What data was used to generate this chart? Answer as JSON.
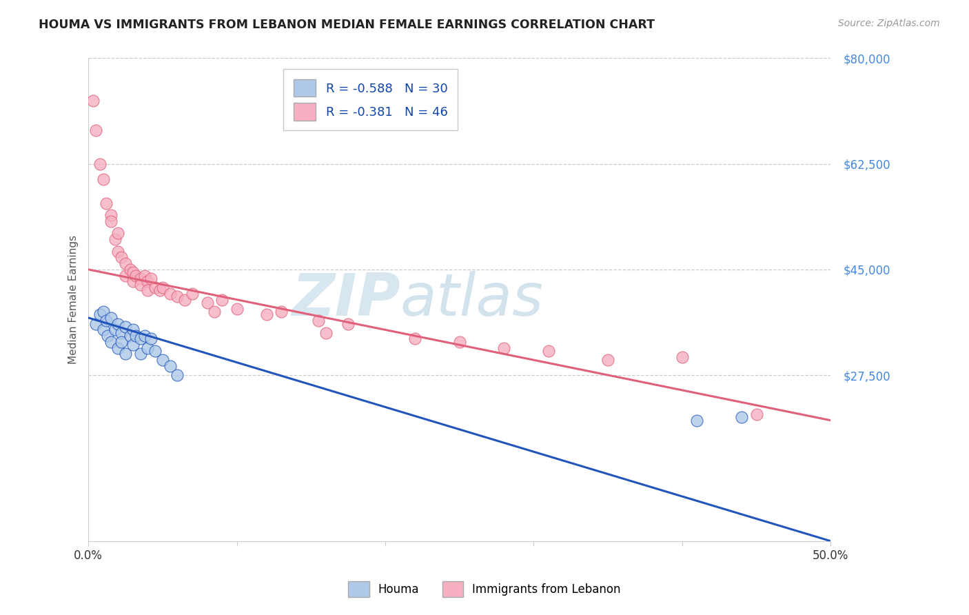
{
  "title": "HOUMA VS IMMIGRANTS FROM LEBANON MEDIAN FEMALE EARNINGS CORRELATION CHART",
  "source": "Source: ZipAtlas.com",
  "ylabel": "Median Female Earnings",
  "legend_labels": [
    "Houma",
    "Immigrants from Lebanon"
  ],
  "blue_R": -0.588,
  "blue_N": 30,
  "pink_R": -0.381,
  "pink_N": 46,
  "blue_color": "#adc8e8",
  "pink_color": "#f5afc0",
  "blue_line_color": "#2255bb",
  "pink_line_color": "#e0607a",
  "watermark_zip": "ZIP",
  "watermark_atlas": "atlas",
  "xlim": [
    0.0,
    0.5
  ],
  "ylim": [
    0,
    80000
  ],
  "yticks": [
    0,
    27500,
    45000,
    62500,
    80000
  ],
  "ytick_labels": [
    "",
    "$27,500",
    "$45,000",
    "$62,500",
    "$80,000"
  ],
  "xticks": [
    0.0,
    0.1,
    0.2,
    0.3,
    0.4,
    0.5
  ],
  "xtick_labels": [
    "0.0%",
    "",
    "",
    "",
    "",
    "50.0%"
  ],
  "blue_scatter_x": [
    0.005,
    0.008,
    0.01,
    0.01,
    0.012,
    0.013,
    0.015,
    0.015,
    0.018,
    0.02,
    0.02,
    0.022,
    0.022,
    0.025,
    0.025,
    0.028,
    0.03,
    0.03,
    0.032,
    0.035,
    0.035,
    0.038,
    0.04,
    0.042,
    0.045,
    0.05,
    0.055,
    0.06,
    0.41,
    0.44
  ],
  "blue_scatter_y": [
    36000,
    37500,
    38000,
    35000,
    36500,
    34000,
    37000,
    33000,
    35000,
    36000,
    32000,
    34500,
    33000,
    35500,
    31000,
    34000,
    35000,
    32500,
    34000,
    33500,
    31000,
    34000,
    32000,
    33500,
    31500,
    30000,
    29000,
    27500,
    20000,
    20500
  ],
  "pink_scatter_x": [
    0.003,
    0.005,
    0.008,
    0.01,
    0.012,
    0.015,
    0.015,
    0.018,
    0.02,
    0.02,
    0.022,
    0.025,
    0.025,
    0.028,
    0.03,
    0.03,
    0.032,
    0.035,
    0.035,
    0.038,
    0.04,
    0.04,
    0.042,
    0.045,
    0.048,
    0.05,
    0.055,
    0.06,
    0.065,
    0.07,
    0.08,
    0.085,
    0.09,
    0.1,
    0.12,
    0.13,
    0.155,
    0.16,
    0.175,
    0.22,
    0.25,
    0.28,
    0.31,
    0.35,
    0.4,
    0.45
  ],
  "pink_scatter_y": [
    73000,
    68000,
    62500,
    60000,
    56000,
    54000,
    53000,
    50000,
    48000,
    51000,
    47000,
    46000,
    44000,
    45000,
    44500,
    43000,
    44000,
    43500,
    42500,
    44000,
    43000,
    41500,
    43500,
    42000,
    41500,
    42000,
    41000,
    40500,
    40000,
    41000,
    39500,
    38000,
    40000,
    38500,
    37500,
    38000,
    36500,
    34500,
    36000,
    33500,
    33000,
    32000,
    31500,
    30000,
    30500,
    21000
  ],
  "blue_line_x0": 0.0,
  "blue_line_x1": 0.5,
  "blue_line_y0": 37000,
  "blue_line_y1": 0,
  "pink_line_x0": 0.0,
  "pink_line_x1": 0.5,
  "pink_line_y0": 45000,
  "pink_line_y1": 20000
}
